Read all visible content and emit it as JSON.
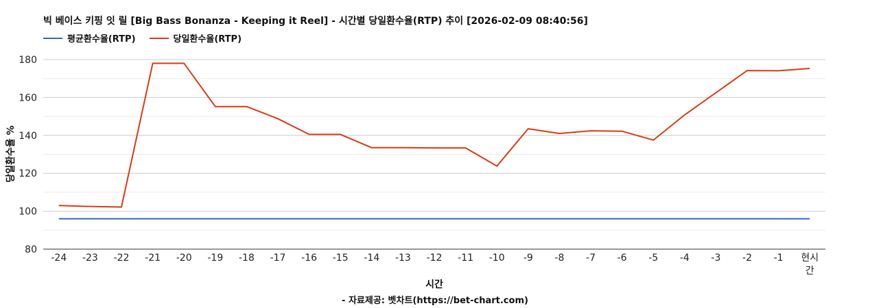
{
  "chart_data": {
    "type": "line",
    "title": "빅 베이스 키핑 잇 릴 [Big Bass Bonanza - Keeping it Reel] - 시간별 당일환수율(RTP) 추이 [2026-02-09 08:40:56]",
    "xlabel": "시간",
    "ylabel": "당일환수율 %",
    "ylim": [
      80,
      180
    ],
    "yticks": [
      80,
      100,
      120,
      140,
      160,
      180
    ],
    "grid": true,
    "legend_position": "top-left",
    "categories": [
      "-24",
      "-23",
      "-22",
      "-21",
      "-20",
      "-19",
      "-18",
      "-17",
      "-16",
      "-15",
      "-14",
      "-13",
      "-12",
      "-11",
      "-10",
      "-9",
      "-8",
      "-7",
      "-6",
      "-5",
      "-4",
      "-3",
      "-2",
      "-1",
      "현시간"
    ],
    "series": [
      {
        "name": "평균환수율(RTP)",
        "color": "#3366cc",
        "values": [
          96,
          96,
          96,
          96,
          96,
          96,
          96,
          96,
          96,
          96,
          96,
          96,
          96,
          96,
          96,
          96,
          96,
          96,
          96,
          96,
          96,
          96,
          96,
          96,
          96
        ]
      },
      {
        "name": "당일환수율(RTP)",
        "color": "#dc3912",
        "values": [
          103,
          102.5,
          102.2,
          178,
          178,
          155.2,
          155.2,
          148.8,
          140.5,
          140.5,
          133.5,
          133.5,
          133.4,
          133.4,
          123.8,
          143.5,
          141,
          142.4,
          142.2,
          137.5,
          150.8,
          162.5,
          174.2,
          174.1,
          175.3
        ]
      }
    ],
    "source": "- 자료제공: 벳차트(https://bet-chart.com)"
  }
}
